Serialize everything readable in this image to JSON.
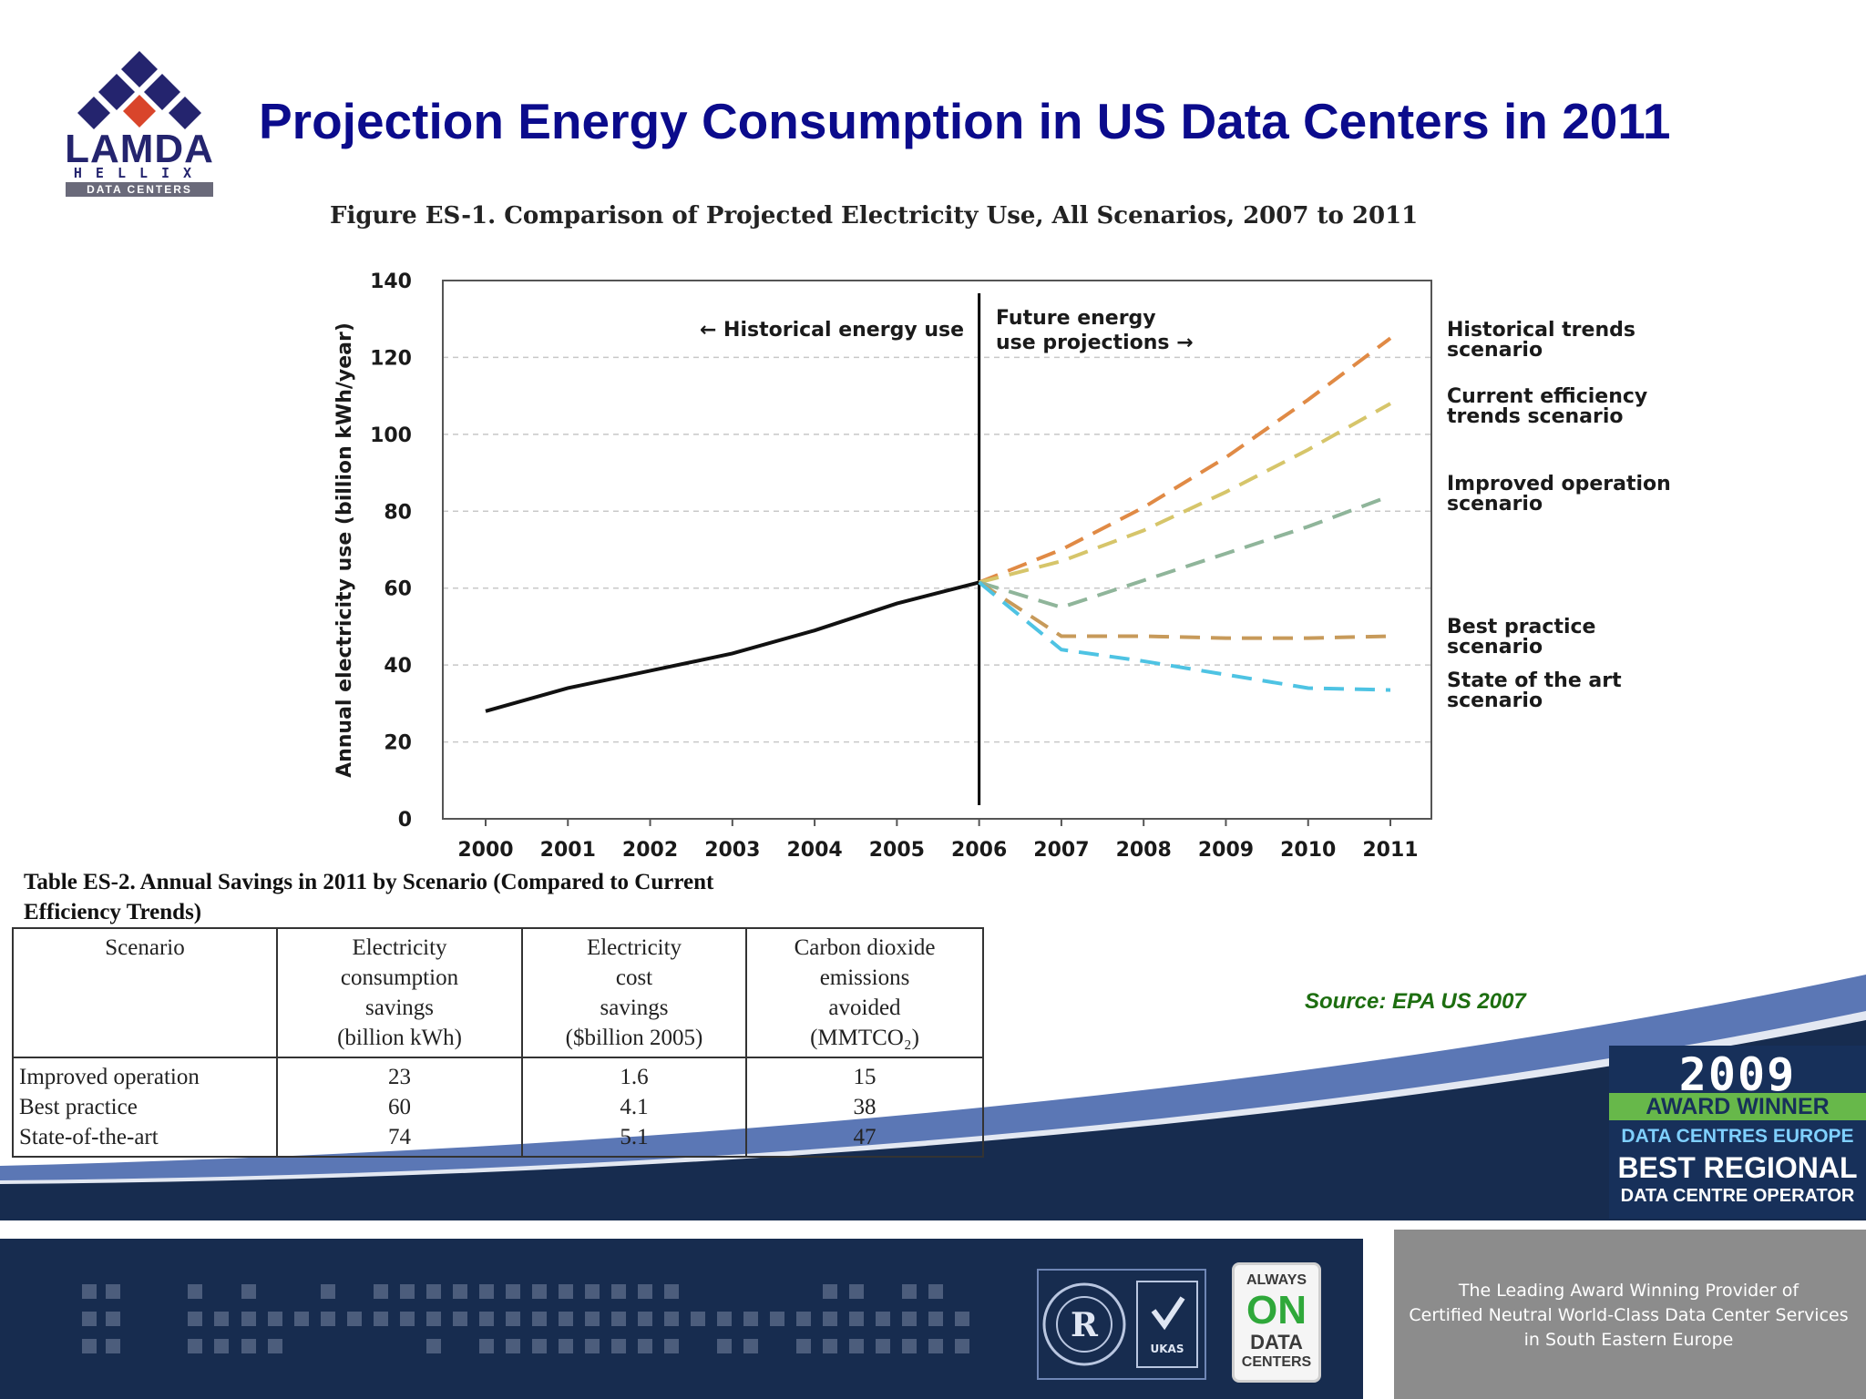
{
  "logo": {
    "name": "LAMDA",
    "sub": "HELLIX",
    "band": "DATA CENTERS"
  },
  "title": "Projection Energy Consumption in US Data Centers in 2011",
  "figure_caption": "Figure ES-1. Comparison of Projected Electricity Use, All Scenarios, 2007 to 2011",
  "chart_data": {
    "type": "line",
    "title": "Figure ES-1. Comparison of Projected Electricity Use, All Scenarios, 2007 to 2011",
    "ylabel": "Annual electricity use (billion kWh/year)",
    "xlabel": "",
    "x": [
      2000,
      2001,
      2002,
      2003,
      2004,
      2005,
      2006,
      2007,
      2008,
      2009,
      2010,
      2011
    ],
    "ylim": [
      0,
      140
    ],
    "yticks": [
      0,
      20,
      40,
      60,
      80,
      100,
      120,
      140
    ],
    "grid": "horizontal dashed",
    "divider_x": 2006,
    "annotations": {
      "historical": "← Historical energy use",
      "future_line1": "Future energy",
      "future_line2": "use projections →"
    },
    "historical": {
      "x": [
        2000,
        2001,
        2002,
        2003,
        2004,
        2005,
        2006
      ],
      "values": [
        28,
        34,
        38.5,
        43,
        49,
        56,
        61.5
      ],
      "color": "#111111"
    },
    "series": [
      {
        "label_lines": [
          "Historical trends",
          "scenario"
        ],
        "x": [
          2006,
          2007,
          2008,
          2009,
          2010,
          2011
        ],
        "values": [
          61.5,
          70,
          81,
          94,
          109,
          125
        ],
        "color": "#e08a45"
      },
      {
        "label_lines": [
          "Current efficiency",
          "trends scenario"
        ],
        "x": [
          2006,
          2007,
          2008,
          2009,
          2010,
          2011
        ],
        "values": [
          61.5,
          67,
          75,
          85,
          96,
          108
        ],
        "color": "#d6c56a"
      },
      {
        "label_lines": [
          "Improved operation",
          "scenario"
        ],
        "x": [
          2006,
          2007,
          2008,
          2009,
          2010,
          2011
        ],
        "values": [
          61.5,
          55,
          62,
          69,
          76,
          84
        ],
        "color": "#8fb59a"
      },
      {
        "label_lines": [
          "Best practice",
          "scenario"
        ],
        "x": [
          2006,
          2007,
          2008,
          2009,
          2010,
          2011
        ],
        "values": [
          61.5,
          47.5,
          47.5,
          47,
          47,
          47.5
        ],
        "color": "#c79a5a"
      },
      {
        "label_lines": [
          "State of the art",
          "scenario"
        ],
        "x": [
          2006,
          2007,
          2008,
          2009,
          2010,
          2011
        ],
        "values": [
          61.5,
          44,
          41,
          37.5,
          34,
          33.5
        ],
        "color": "#4ec3e3"
      }
    ]
  },
  "table": {
    "title": "Table ES-2. Annual Savings in 2011 by Scenario (Compared to Current Efficiency Trends)",
    "headers": [
      [
        "Scenario"
      ],
      [
        "Electricity",
        "consumption",
        "savings",
        "(billion kWh)"
      ],
      [
        "Electricity",
        "cost",
        "savings",
        "($billion 2005)"
      ],
      [
        "Carbon dioxide",
        "emissions",
        "avoided",
        "(MMTCO₂)"
      ]
    ],
    "rows": [
      [
        "Improved operation",
        "23",
        "1.6",
        "15"
      ],
      [
        "Best practice",
        "60",
        "4.1",
        "38"
      ],
      [
        "State-of-the-art",
        "74",
        "5.1",
        "47"
      ]
    ]
  },
  "source": "Source: EPA US 2007",
  "award": {
    "year": "2009",
    "winner": "AWARD WINNER",
    "europe": "DATA CENTRES EUROPE",
    "best": "BEST REGIONAL",
    "operator": "DATA CENTRE OPERATOR"
  },
  "badges": {
    "ukas": "UKAS",
    "always": "ALWAYS",
    "on": "ON",
    "data": "DATA",
    "centers": "CENTERS"
  },
  "tagline": [
    "The Leading Award Winning Provider of",
    "Certified Neutral World-Class Data Center Services",
    "in South Eastern Europe"
  ],
  "colors": {
    "title": "#0b0b8c",
    "navy": "#172c4f",
    "swoosh": "#5b77b5",
    "source": "#1d6e10",
    "award_green": "#67b84a"
  }
}
